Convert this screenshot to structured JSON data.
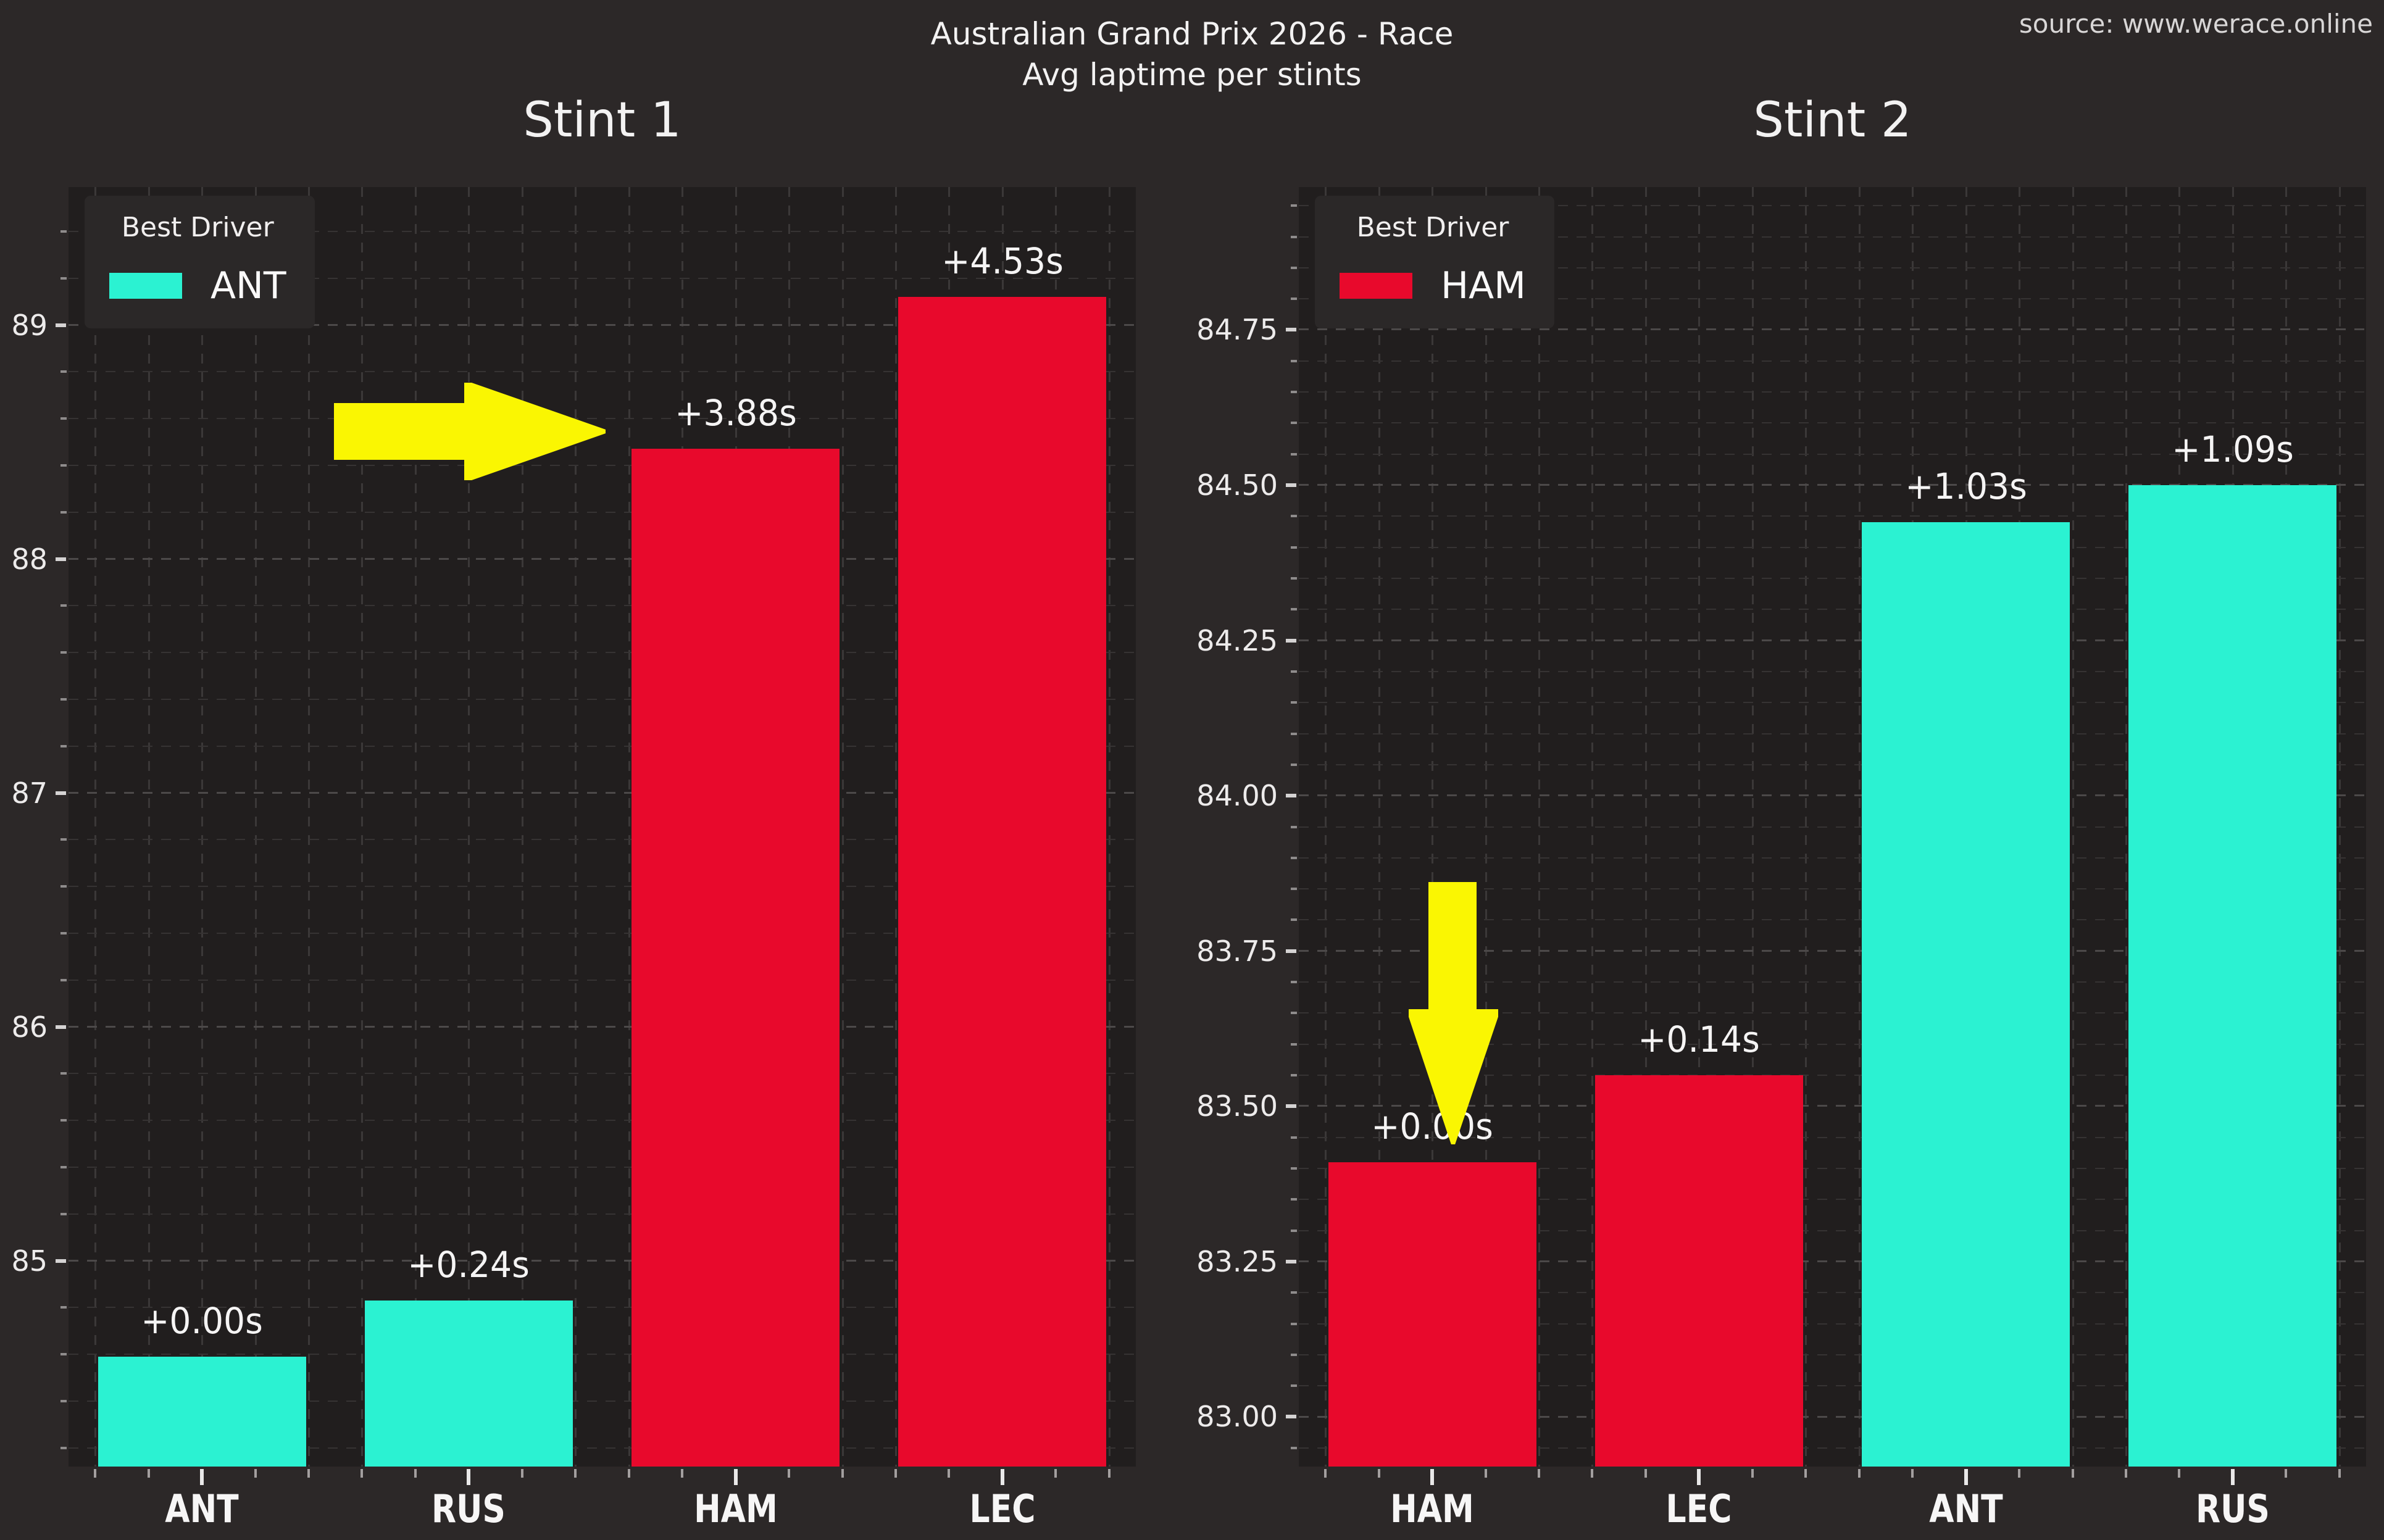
{
  "header": {
    "title_line1": "Australian Grand Prix 2026 - Race",
    "title_line2": "Avg laptime per stints",
    "source": "source: www.werace.online"
  },
  "colors": {
    "cyan": "#2BF2D2",
    "red": "#E8092C",
    "yellow": "#FAF602",
    "figure_bg": "#2C2828",
    "plot_bg": "#211E1E",
    "text": "#F3F2F2"
  },
  "chart_data": [
    {
      "type": "bar",
      "title": "Stint 1",
      "legend": {
        "title": "Best Driver",
        "label": "ANT",
        "color": "cyan"
      },
      "categories": [
        "ANT",
        "RUS",
        "HAM",
        "LEC"
      ],
      "values": [
        84.59,
        84.83,
        88.47,
        89.12
      ],
      "bar_labels": [
        "+0.00s",
        "+0.24s",
        "+3.88s",
        "+4.53s"
      ],
      "bar_colors": [
        "cyan",
        "cyan",
        "red",
        "red"
      ],
      "ylabel": "",
      "xlabel": "",
      "ylim": [
        84.12,
        89.59
      ],
      "yticks": [
        85,
        86,
        87,
        88,
        89
      ],
      "ytick_labels": [
        "85",
        "86",
        "87",
        "88",
        "89"
      ],
      "minor_step": 0.2,
      "grid": "dashed",
      "legend_position": "upper-left",
      "annotation_arrow": {
        "direction": "right",
        "target": "HAM"
      }
    },
    {
      "type": "bar",
      "title": "Stint 2",
      "legend": {
        "title": "Best Driver",
        "label": "HAM",
        "color": "red"
      },
      "categories": [
        "HAM",
        "LEC",
        "ANT",
        "RUS"
      ],
      "values": [
        83.41,
        83.55,
        84.44,
        84.5
      ],
      "bar_labels": [
        "+0.00s",
        "+0.14s",
        "+1.03s",
        "+1.09s"
      ],
      "bar_colors": [
        "red",
        "red",
        "cyan",
        "cyan"
      ],
      "ylabel": "",
      "xlabel": "",
      "ylim": [
        82.92,
        84.98
      ],
      "yticks": [
        83.0,
        83.25,
        83.5,
        83.75,
        84.0,
        84.25,
        84.5,
        84.75
      ],
      "ytick_labels": [
        "83.00",
        "83.25",
        "83.50",
        "83.75",
        "84.00",
        "84.25",
        "84.50",
        "84.75"
      ],
      "minor_step": 0.05,
      "grid": "dashed",
      "legend_position": "upper-left",
      "annotation_arrow": {
        "direction": "down",
        "target": "HAM"
      }
    }
  ]
}
